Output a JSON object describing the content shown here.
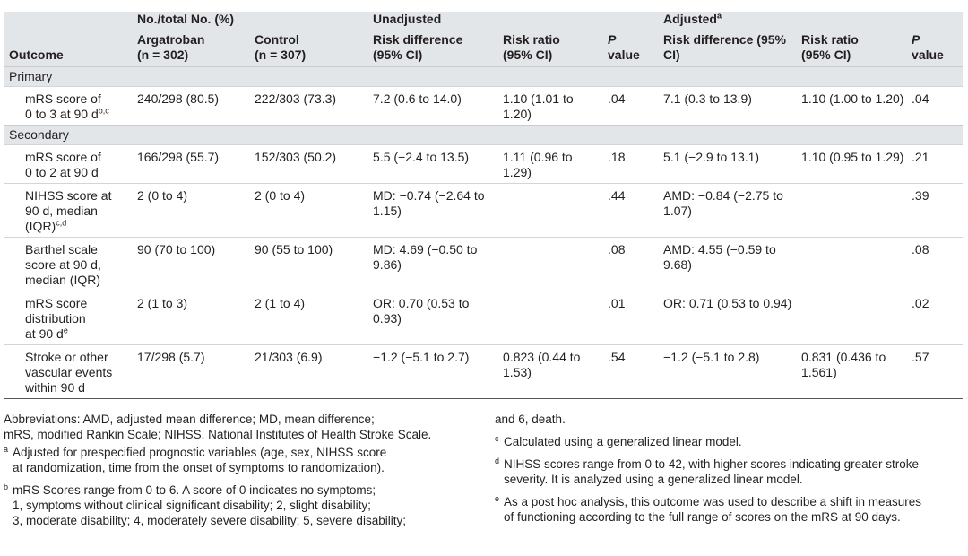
{
  "header": {
    "outcome": "Outcome",
    "group_counts": "No./total No. (%)",
    "unadjusted": "Unadjusted",
    "adjusted": "Adjusted",
    "adjusted_mark": "a",
    "argatroban_l1": "Argatroban",
    "argatroban_l2": "(n = 302)",
    "control_l1": "Control",
    "control_l2": "(n = 307)",
    "rd_l1": "Risk difference",
    "rd_l2": "(95% CI)",
    "rr_l1": "Risk ratio",
    "rr_l2": "(95% CI)",
    "p_l1": "P",
    "p_l2": "value",
    "ard_l1": "Risk difference (95%",
    "ard_l2": "CI)",
    "arr_l1": "Risk ratio",
    "arr_l2": "(95% CI)",
    "ap_l1": "P",
    "ap_l2": "value"
  },
  "sections": {
    "primary": "Primary",
    "secondary": "Secondary"
  },
  "rows": [
    {
      "o1": "mRS score of",
      "o2": "0 to 3 at 90 d",
      "o2_mark": "b,c",
      "arg": "240/298 (80.5)",
      "ctl": "222/303 (73.3)",
      "rd": "7.2 (0.6 to 14.0)",
      "rr": "1.10 (1.01 to 1.20)",
      "p": ".04",
      "ard": "7.1 (0.3 to 13.9)",
      "arr": "1.10 (1.00 to 1.20)",
      "ap": ".04"
    },
    {
      "o1": "mRS score of",
      "o2": "0 to 2 at 90 d",
      "arg": "166/298 (55.7)",
      "ctl": "152/303 (50.2)",
      "rd": "5.5 (−2.4 to 13.5)",
      "rr": "1.11 (0.96 to 1.29)",
      "p": ".18",
      "ard": "5.1 (−2.9 to 13.1)",
      "arr": "1.10 (0.95 to 1.29)",
      "ap": ".21"
    },
    {
      "o1": "NIHSS score at",
      "o2": "90 d, median",
      "o3": "(IQR)",
      "o3_mark": "c,d",
      "arg": "2 (0 to 4)",
      "ctl": "2 (0 to 4)",
      "rd": "MD: −0.74 (−2.64 to 1.15)",
      "rr": "",
      "p": ".44",
      "ard": "AMD: −0.84 (−2.75 to 1.07)",
      "arr": "",
      "ap": ".39"
    },
    {
      "o1": "Barthel scale",
      "o2": "score at 90 d,",
      "o3": "median (IQR)",
      "arg": "90 (70 to 100)",
      "ctl": "90 (55 to 100)",
      "rd": "MD: 4.69 (−0.50 to 9.86)",
      "rr": "",
      "p": ".08",
      "ard": "AMD: 4.55 (−0.59 to 9.68)",
      "arr": "",
      "ap": ".08"
    },
    {
      "o1": "mRS score",
      "o2": "distribution",
      "o3": "at 90 d",
      "o3_mark": "e",
      "arg": "2 (1 to 3)",
      "ctl": "2 (1 to 4)",
      "rd": "OR: 0.70 (0.53 to 0.93)",
      "rr": "",
      "p": ".01",
      "ard": "OR: 0.71 (0.53 to 0.94)",
      "arr": "",
      "ap": ".02"
    },
    {
      "o1": "Stroke or other",
      "o2": "vascular events",
      "o3": "within 90 d",
      "arg": "17/298 (5.7)",
      "ctl": "21/303 (6.9)",
      "rd": "−1.2 (−5.1 to 2.7)",
      "rr": "0.823 (0.44 to 1.53)",
      "p": ".54",
      "ard": "−1.2 (−5.1 to 2.8)",
      "arr": "0.831 (0.436 to 1.561)",
      "ap": ".57"
    }
  ],
  "footnotes": {
    "abbrev_l1": "Abbreviations: AMD, adjusted mean difference; MD, mean difference;",
    "abbrev_l2": "mRS, modified Rankin Scale; NIHSS, National Institutes of Health Stroke Scale.",
    "a_mark": "a",
    "a_l1": "Adjusted for prespecified prognostic variables (age, sex, NIHSS score",
    "a_l2": "at randomization, time from the onset of symptoms to randomization).",
    "b_mark": "b",
    "b_l1": "mRS Scores range from 0 to 6. A score of 0 indicates no symptoms;",
    "b_l2": "1, symptoms without clinical significant disability; 2, slight disability;",
    "b_l3": "3, moderate disability; 4, moderately severe disability; 5, severe disability;",
    "b_l4": "and 6, death.",
    "c_mark": "c",
    "c_l1": "Calculated using a generalized linear model.",
    "d_mark": "d",
    "d_l1": "NIHSS scores range from 0 to 42, with higher scores indicating greater stroke",
    "d_l2": "severity. It is analyzed using a generalized linear model.",
    "e_mark": "e",
    "e_l1": "As a post hoc analysis, this outcome was used to describe a shift in measures",
    "e_l2": "of functioning according to the full range of scores on the mRS at 90 days."
  }
}
